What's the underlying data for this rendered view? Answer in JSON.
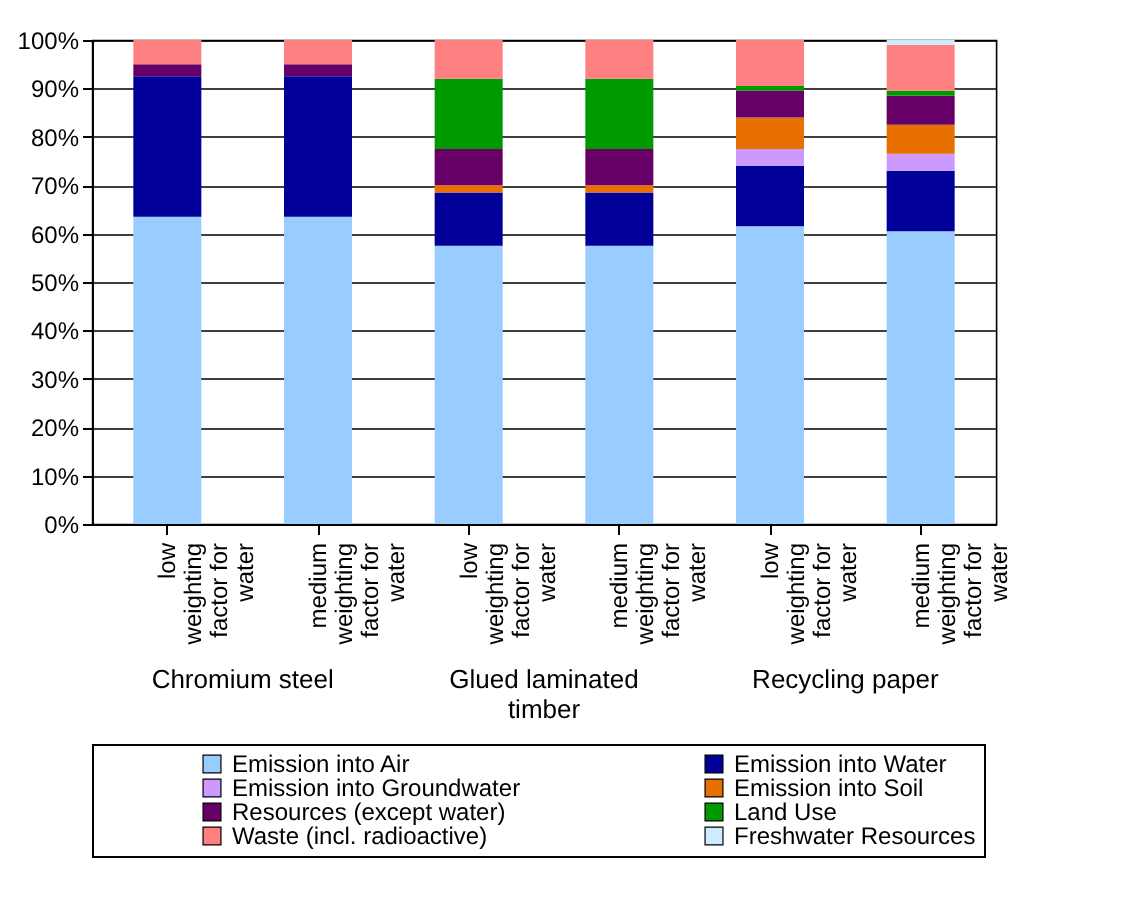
{
  "chart_data": {
    "type": "bar",
    "stacked": true,
    "categories": [
      "low weighting factor for water",
      "medium weighting factor for water",
      "low weighting factor for water",
      "medium weighting factor for water",
      "low weighting factor for water",
      "medium weighting factor for water"
    ],
    "annotations": [
      "Chromium steel",
      "Glued laminated timber",
      "Recycling paper"
    ],
    "series": [
      {
        "name": "Emission into Air",
        "color": "#99ccff",
        "values": [
          63.5,
          63.5,
          57.5,
          57.5,
          61.5,
          60.5
        ]
      },
      {
        "name": "Emission into Water",
        "color": "#000099",
        "values": [
          29,
          29,
          11,
          11,
          12.5,
          12.5
        ]
      },
      {
        "name": "Emission into Groundwater",
        "color": "#cc99ff",
        "values": [
          0,
          0,
          0,
          0,
          3.5,
          3.5
        ]
      },
      {
        "name": "Emission into Soil",
        "color": "#e87000",
        "values": [
          0,
          0,
          1.5,
          1.5,
          6.5,
          6
        ]
      },
      {
        "name": "Resources (except water)",
        "color": "#660066",
        "values": [
          2.5,
          2.5,
          7.5,
          7.5,
          5.5,
          6
        ]
      },
      {
        "name": "Land Use",
        "color": "#009900",
        "values": [
          0,
          0,
          14.5,
          14.5,
          1,
          1
        ]
      },
      {
        "name": "Waste (incl. radioactive)",
        "color": "#ff8080",
        "values": [
          5,
          5,
          8,
          8,
          9.5,
          9.5
        ]
      },
      {
        "name": "Freshwater Resources",
        "color": "#ccecff",
        "values": [
          0,
          0,
          0,
          0,
          0,
          1
        ]
      }
    ],
    "ylim": [
      0,
      100
    ],
    "yticks": [
      {
        "value": 0,
        "label": "0%"
      },
      {
        "value": 10,
        "label": "10%"
      },
      {
        "value": 20,
        "label": "20%"
      },
      {
        "value": 30,
        "label": "30%"
      },
      {
        "value": 40,
        "label": "40%"
      },
      {
        "value": 50,
        "label": "50%"
      },
      {
        "value": 60,
        "label": "60%"
      },
      {
        "value": 70,
        "label": "70%"
      },
      {
        "value": 80,
        "label": "80%"
      },
      {
        "value": 90,
        "label": "90%"
      },
      {
        "value": 100,
        "label": "100%"
      }
    ],
    "grid": "y",
    "legend": "bottom"
  }
}
